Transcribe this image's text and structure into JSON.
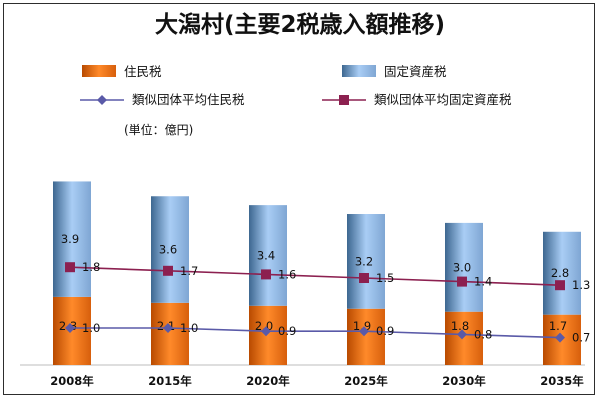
{
  "chart_data": {
    "type": "bar",
    "title": "大潟村(主要2税歳入額推移)",
    "unit_label": "(単位：億円)",
    "categories": [
      "2008年",
      "2015年",
      "2020年",
      "2025年",
      "2030年",
      "2035年"
    ],
    "stacked": true,
    "series": [
      {
        "name": "住民税",
        "kind": "bar",
        "values": [
          2.3,
          2.1,
          2.0,
          1.9,
          1.8,
          1.7
        ],
        "labels": [
          "2.3",
          "2.1",
          "2.0",
          "1.9",
          "1.8",
          "1.7"
        ]
      },
      {
        "name": "固定資産税",
        "kind": "bar",
        "values": [
          3.9,
          3.6,
          3.4,
          3.2,
          3.0,
          2.8
        ],
        "labels": [
          "3.9",
          "3.6",
          "3.4",
          "3.2",
          "3.0",
          "2.8"
        ]
      },
      {
        "name": "類似団体平均住民税",
        "kind": "line",
        "marker": "diamond",
        "values": [
          1.0,
          1.0,
          0.9,
          0.9,
          0.8,
          0.7
        ],
        "labels": [
          "1.0",
          "1.0",
          "0.9",
          "0.9",
          "0.8",
          "0.7"
        ]
      },
      {
        "name": "類似団体平均固定資産税",
        "kind": "line",
        "marker": "square",
        "values": [
          1.8,
          1.7,
          1.6,
          1.5,
          1.4,
          1.3
        ],
        "labels": [
          "1.8",
          "1.7",
          "1.6",
          "1.5",
          "1.4",
          "1.3"
        ]
      }
    ],
    "ylim": [
      0,
      7.6
    ],
    "grid": false,
    "legend_placement": "top",
    "colors": {
      "resident_tax_dark": "#b84a00",
      "resident_tax_light": "#ff8a2a",
      "property_tax_dark": "#3d6790",
      "property_tax_light": "#a9cdf5",
      "line_resident_avg": "#5a5aa8",
      "line_property_avg": "#8c2050"
    }
  }
}
